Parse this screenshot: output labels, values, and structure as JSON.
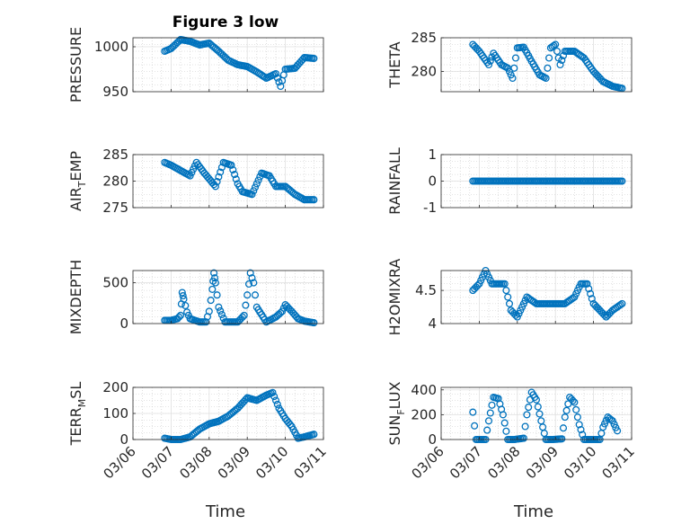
{
  "title": "Figure 3 low",
  "xlabel": "Time",
  "colors": {
    "marker": "#0072BD",
    "axis": "#262626",
    "grid": "#dfdfdf",
    "minor_grid": "#c8c8c8"
  },
  "chart_data": [
    {
      "type": "scatter",
      "ylabel": "PRESSURE",
      "ylim": [
        950,
        1010
      ],
      "yticks": [
        950,
        1000
      ],
      "grid": true,
      "x": [
        "03/06 20:00",
        "03/07 00:00",
        "03/07 06:00",
        "03/07 12:00",
        "03/07 18:00",
        "03/08 00:00",
        "03/08 06:00",
        "03/08 12:00",
        "03/08 18:00",
        "03/09 00:00",
        "03/09 06:00",
        "03/09 12:00",
        "03/09 18:00",
        "03/09 21:00",
        "03/10 00:00",
        "03/10 06:00",
        "03/10 12:00",
        "03/10 18:00"
      ],
      "y": [
        995,
        998,
        1008,
        1006,
        1002,
        1004,
        995,
        985,
        980,
        978,
        972,
        965,
        970,
        956,
        975,
        976,
        988,
        987
      ]
    },
    {
      "type": "scatter",
      "ylabel": "THETA",
      "ylim": [
        277,
        285
      ],
      "yticks": [
        280,
        285
      ],
      "grid": true,
      "x": [
        "03/06 20:00",
        "03/07 00:00",
        "03/07 06:00",
        "03/07 09:00",
        "03/07 14:00",
        "03/07 18:00",
        "03/07 21:00",
        "03/08 00:00",
        "03/08 04:00",
        "03/08 09:00",
        "03/08 14:00",
        "03/08 18:00",
        "03/08 21:00",
        "03/09 00:00",
        "03/09 03:00",
        "03/09 06:00",
        "03/09 12:00",
        "03/09 18:00",
        "03/10 00:00",
        "03/10 06:00",
        "03/10 12:00",
        "03/10 18:00"
      ],
      "y": [
        284,
        283,
        281,
        282.7,
        281,
        280.5,
        279,
        283.5,
        283.6,
        281.5,
        279.5,
        279,
        283.5,
        284,
        281,
        283,
        283,
        282,
        280,
        278.5,
        277.8,
        277.5
      ]
    },
    {
      "type": "scatter",
      "ylabel": "AIR_TEMP",
      "ylim": [
        275,
        285
      ],
      "yticks": [
        275,
        280,
        285
      ],
      "grid": true,
      "x": [
        "03/06 20:00",
        "03/07 00:00",
        "03/07 06:00",
        "03/07 12:00",
        "03/07 16:00",
        "03/07 21:00",
        "03/08 04:00",
        "03/08 09:00",
        "03/08 14:00",
        "03/08 18:00",
        "03/08 21:00",
        "03/09 03:00",
        "03/09 09:00",
        "03/09 14:00",
        "03/09 18:00",
        "03/10 00:00",
        "03/10 06:00",
        "03/10 12:00",
        "03/10 18:00"
      ],
      "y": [
        283.5,
        283,
        282,
        281,
        283.5,
        281.5,
        279,
        283.5,
        283,
        279.5,
        278,
        277.5,
        281.5,
        281,
        279,
        279,
        277.5,
        276.5,
        276.5
      ]
    },
    {
      "type": "scatter",
      "ylabel": "RAINFALL",
      "ylim": [
        -1,
        1
      ],
      "yticks": [
        -1,
        0,
        1
      ],
      "grid": true,
      "x": [
        "03/06 20:00",
        "03/10 18:00"
      ],
      "y": [
        0,
        0
      ]
    },
    {
      "type": "scatter",
      "ylabel": "MIXDEPTH",
      "ylim": [
        0,
        650
      ],
      "yticks": [
        0,
        500
      ],
      "grid": true,
      "x": [
        "03/06 20:00",
        "03/07 00:00",
        "03/07 04:00",
        "03/07 06:00",
        "03/07 07:00",
        "03/07 08:00",
        "03/07 10:00",
        "03/07 12:00",
        "03/07 18:00",
        "03/07 22:00",
        "03/08 00:00",
        "03/08 02:00",
        "03/08 03:00",
        "03/08 04:00",
        "03/08 06:00",
        "03/08 10:00",
        "03/08 18:00",
        "03/08 22:00",
        "03/09 00:00",
        "03/09 02:00",
        "03/09 04:00",
        "03/09 06:00",
        "03/09 12:00",
        "03/09 18:00",
        "03/09 22:00",
        "03/10 00:00",
        "03/10 04:00",
        "03/10 08:00",
        "03/10 12:00",
        "03/10 18:00"
      ],
      "y": [
        40,
        40,
        60,
        100,
        380,
        300,
        140,
        60,
        20,
        20,
        150,
        420,
        620,
        500,
        200,
        20,
        20,
        100,
        350,
        620,
        500,
        200,
        20,
        80,
        150,
        230,
        150,
        60,
        30,
        10
      ]
    },
    {
      "type": "scatter",
      "ylabel": "H2OMIXRA",
      "ylim": [
        4,
        4.8
      ],
      "yticks": [
        4,
        4.5
      ],
      "grid": true,
      "x": [
        "03/06 20:00",
        "03/07 00:00",
        "03/07 04:00",
        "03/07 08:00",
        "03/07 16:00",
        "03/07 20:00",
        "03/08 00:00",
        "03/08 06:00",
        "03/08 12:00",
        "03/08 18:00",
        "03/09 00:00",
        "03/09 06:00",
        "03/09 12:00",
        "03/09 16:00",
        "03/09 20:00",
        "03/10 00:00",
        "03/10 04:00",
        "03/10 08:00",
        "03/10 12:00",
        "03/10 18:00"
      ],
      "y": [
        4.5,
        4.6,
        4.8,
        4.6,
        4.6,
        4.2,
        4.1,
        4.4,
        4.3,
        4.3,
        4.3,
        4.3,
        4.4,
        4.6,
        4.6,
        4.3,
        4.2,
        4.1,
        4.2,
        4.3
      ]
    },
    {
      "type": "scatter",
      "ylabel": "TERR_MSL",
      "ylim": [
        0,
        200
      ],
      "yticks": [
        0,
        100,
        200
      ],
      "grid": true,
      "x": [
        "03/06 20:00",
        "03/07 00:00",
        "03/07 06:00",
        "03/07 12:00",
        "03/07 18:00",
        "03/08 00:00",
        "03/08 06:00",
        "03/08 12:00",
        "03/08 18:00",
        "03/09 00:00",
        "03/09 06:00",
        "03/09 12:00",
        "03/09 16:00",
        "03/09 20:00",
        "03/10 00:00",
        "03/10 04:00",
        "03/10 08:00",
        "03/10 12:00",
        "03/10 18:00"
      ],
      "y": [
        5,
        0,
        0,
        10,
        40,
        60,
        70,
        90,
        120,
        160,
        150,
        170,
        180,
        120,
        80,
        50,
        5,
        10,
        20
      ]
    },
    {
      "type": "scatter",
      "ylabel": "SUN_FLUX",
      "ylim": [
        0,
        420
      ],
      "yticks": [
        0,
        200,
        400
      ],
      "grid": true,
      "x": [
        "03/06 20:00",
        "03/06 22:00",
        "03/07 04:00",
        "03/07 06:00",
        "03/07 09:00",
        "03/07 12:00",
        "03/07 15:00",
        "03/07 18:00",
        "03/07 22:00",
        "03/08 04:00",
        "03/08 06:00",
        "03/08 09:00",
        "03/08 12:00",
        "03/08 15:00",
        "03/08 18:00",
        "03/08 22:00",
        "03/09 04:00",
        "03/09 06:00",
        "03/09 09:00",
        "03/09 12:00",
        "03/09 15:00",
        "03/09 18:00",
        "03/09 22:00",
        "03/10 04:00",
        "03/10 06:00",
        "03/10 09:00",
        "03/10 12:00",
        "03/10 15:00"
      ],
      "y": [
        220,
        0,
        0,
        150,
        340,
        330,
        200,
        0,
        0,
        10,
        200,
        380,
        320,
        150,
        0,
        0,
        5,
        180,
        340,
        300,
        120,
        0,
        0,
        0,
        100,
        180,
        150,
        70
      ]
    }
  ],
  "xticks": [
    "03/06",
    "03/07",
    "03/08",
    "03/09",
    "03/10",
    "03/11"
  ]
}
